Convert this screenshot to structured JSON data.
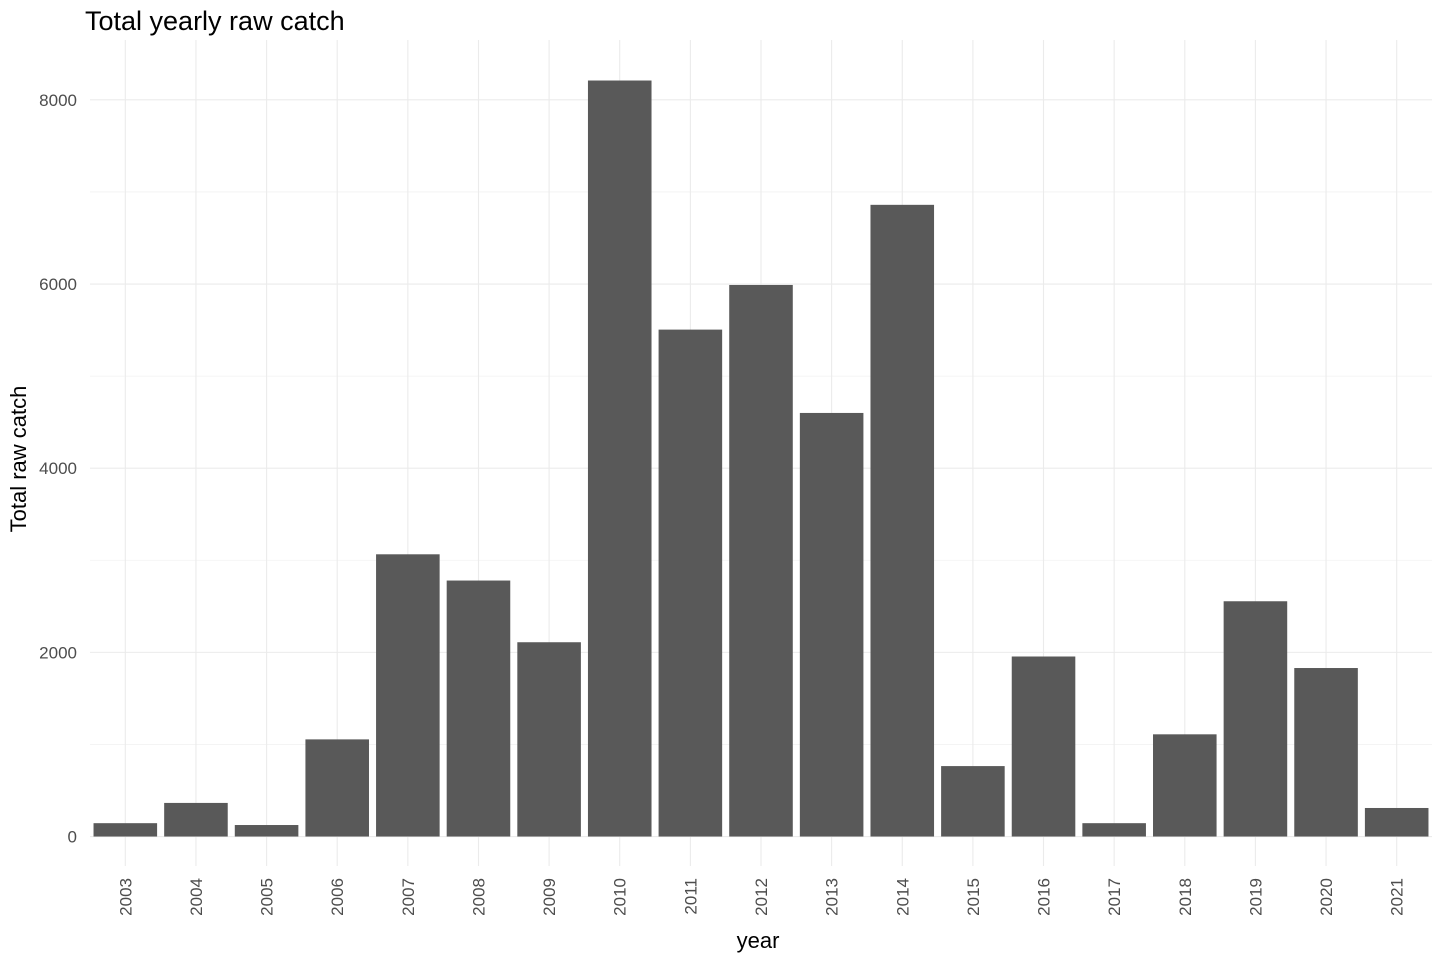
{
  "chart_data": {
    "type": "bar",
    "title": "Total yearly raw catch",
    "xlabel": "year",
    "ylabel": "Total raw catch",
    "categories": [
      "2003",
      "2004",
      "2005",
      "2006",
      "2007",
      "2008",
      "2009",
      "2010",
      "2011",
      "2012",
      "2013",
      "2014",
      "2015",
      "2016",
      "2017",
      "2018",
      "2019",
      "2020",
      "2021"
    ],
    "values": [
      145,
      365,
      125,
      1055,
      3065,
      2780,
      2110,
      8210,
      5505,
      5990,
      4600,
      6860,
      765,
      1955,
      145,
      1110,
      2555,
      1830,
      310
    ],
    "ylim": [
      -320,
      8650
    ],
    "yticks": [
      0,
      2000,
      4000,
      6000,
      8000
    ],
    "yticks_minor": [
      1000,
      3000,
      5000,
      7000
    ],
    "ytick_labels": [
      "0",
      "2000",
      "4000",
      "6000",
      "8000"
    ],
    "bar_color": "#595959",
    "grid": true,
    "legend": "none"
  }
}
